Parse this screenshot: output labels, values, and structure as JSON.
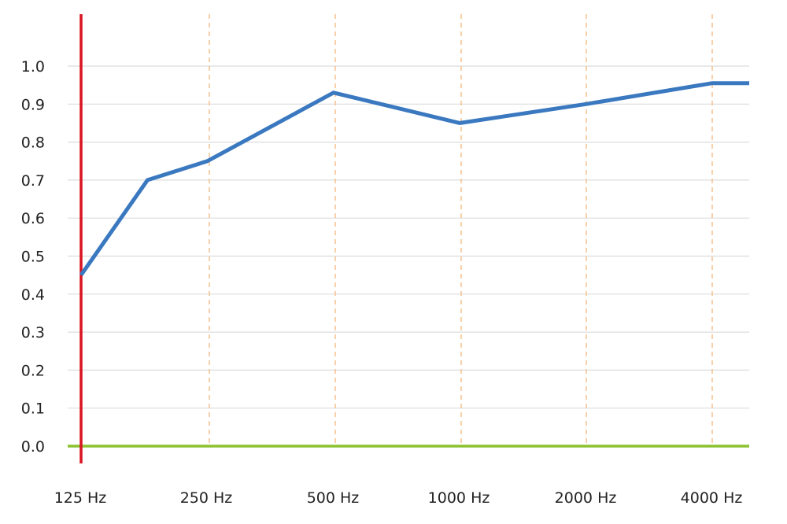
{
  "chart_data": {
    "type": "line",
    "title": "",
    "xlabel": "",
    "ylabel": "",
    "categories": [
      "125 Hz",
      "250 Hz",
      "500 Hz",
      "1000 Hz",
      "2000 Hz",
      "4000 Hz"
    ],
    "x": [
      125,
      180,
      250,
      500,
      1000,
      2000,
      4000,
      5000
    ],
    "series": [
      {
        "values": [
          0.45,
          0.7,
          0.75,
          0.93,
          0.85,
          0.9,
          0.955,
          0.955
        ],
        "color": "#3a78c0"
      }
    ],
    "y_ticks": [
      "0.0",
      "0.1",
      "0.2",
      "0.3",
      "0.4",
      "0.5",
      "0.6",
      "0.7",
      "0.8",
      "0.9",
      "1.0"
    ],
    "ylim": [
      0,
      1.0
    ],
    "x_scale": "log",
    "grid": true,
    "colors": {
      "y_axis": "#d9141f",
      "x_axis": "#8cc230",
      "gridlines": "#dcdcdc",
      "vertical_gridlines": "#f6c18e",
      "line": "#3a78c0"
    }
  }
}
